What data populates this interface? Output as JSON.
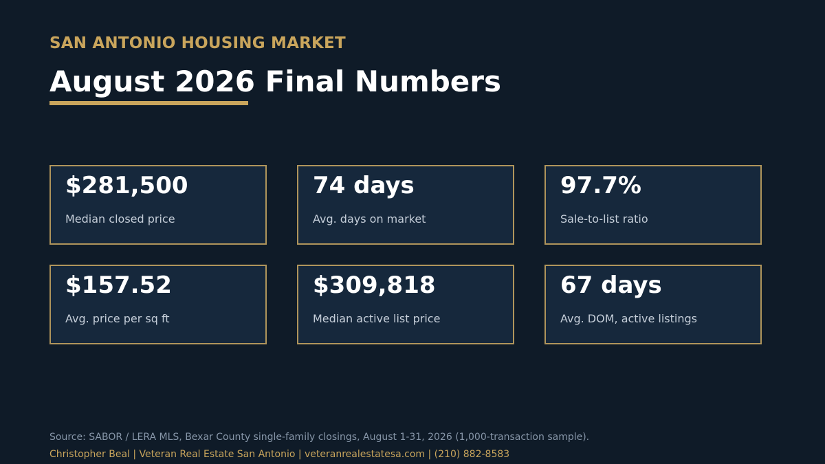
{
  "header": {
    "eyebrow": "SAN ANTONIO HOUSING MARKET",
    "title": "August 2026 Final Numbers"
  },
  "stats": [
    {
      "value": "$281,500",
      "label": "Median closed price"
    },
    {
      "value": "74 days",
      "label": "Avg. days on market"
    },
    {
      "value": "97.7%",
      "label": "Sale-to-list ratio"
    },
    {
      "value": "$157.52",
      "label": "Avg. price per sq ft"
    },
    {
      "value": "$309,818",
      "label": "Median active list price"
    },
    {
      "value": "67 days",
      "label": "Avg. DOM, active listings"
    }
  ],
  "footer": {
    "source": "Source: SABOR / LERA MLS, Bexar County single-family closings, August 1-31, 2026 (1,000-transaction sample).",
    "credit": "Christopher Beal | Veteran Real Estate San Antonio | veteranrealestatesa.com | (210) 882-8583"
  },
  "colors": {
    "background": "#0f1b28",
    "accent_gold": "#c9a55c",
    "card_background": "#16283c",
    "card_border": "#b0955b"
  }
}
